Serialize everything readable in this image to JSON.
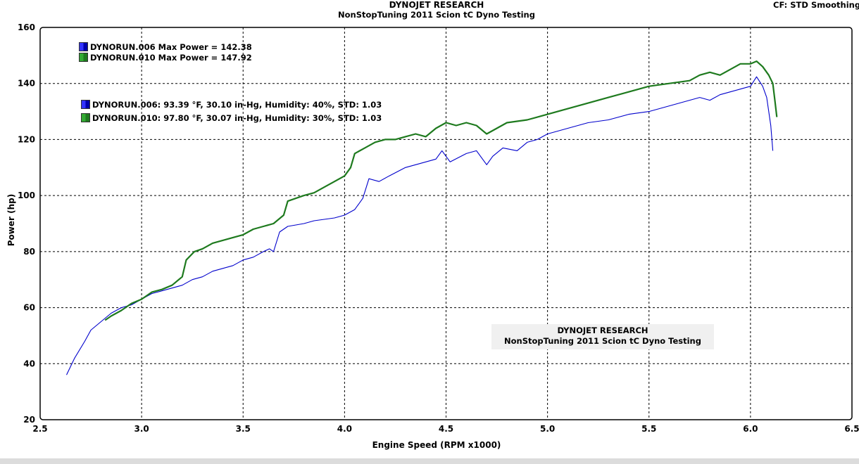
{
  "header": {
    "title": "DYNOJET RESEARCH",
    "subtitle": "NonStopTuning 2011 Scion tC Dyno Testing",
    "cf_label": "CF: STD  Smoothing"
  },
  "note_box": {
    "line1": "DYNOJET RESEARCH",
    "line2": "NonStopTuning 2011 Scion tC Dyno Testing"
  },
  "legend": {
    "max_power": [
      "DYNORUN.006 Max Power = 142.38",
      "DYNORUN.010 Max Power = 147.92"
    ],
    "conditions": [
      "DYNORUN.006: 93.39 °F, 30.10 in-Hg, Humidity: 40%, STD: 1.03",
      "DYNORUN.010: 97.80 °F, 30.07 in-Hg, Humidity: 30%, STD: 1.03"
    ]
  },
  "colors": {
    "run006": "#0000cc",
    "run010": "#1e7a1e",
    "grid": "#000000"
  },
  "chart_data": {
    "type": "line",
    "title": "DYNOJET RESEARCH",
    "subtitle": "NonStopTuning 2011 Scion tC Dyno Testing",
    "xlabel": "Engine Speed (RPM x1000)",
    "ylabel": "Power (hp)",
    "xlim": [
      2.5,
      6.5
    ],
    "ylim": [
      20,
      160
    ],
    "xticks": [
      "2.5",
      "3.0",
      "3.5",
      "4.0",
      "4.5",
      "5.0",
      "5.5",
      "6.0",
      "6.5"
    ],
    "yticks": [
      "20",
      "40",
      "60",
      "80",
      "100",
      "120",
      "140",
      "160"
    ],
    "grid": true,
    "legend_position": "top-left",
    "series": [
      {
        "name": "DYNORUN.006",
        "color": "#0000cc",
        "points": [
          [
            2.63,
            36
          ],
          [
            2.67,
            42
          ],
          [
            2.72,
            48
          ],
          [
            2.75,
            52
          ],
          [
            2.8,
            55
          ],
          [
            2.85,
            58
          ],
          [
            2.9,
            60
          ],
          [
            2.95,
            61
          ],
          [
            3.0,
            63
          ],
          [
            3.05,
            65
          ],
          [
            3.1,
            66
          ],
          [
            3.15,
            67
          ],
          [
            3.2,
            68
          ],
          [
            3.25,
            70
          ],
          [
            3.3,
            71
          ],
          [
            3.35,
            73
          ],
          [
            3.4,
            74
          ],
          [
            3.45,
            75
          ],
          [
            3.5,
            77
          ],
          [
            3.55,
            78
          ],
          [
            3.6,
            80
          ],
          [
            3.63,
            81
          ],
          [
            3.65,
            80
          ],
          [
            3.68,
            87
          ],
          [
            3.72,
            89
          ],
          [
            3.8,
            90
          ],
          [
            3.85,
            91
          ],
          [
            3.95,
            92
          ],
          [
            4.0,
            93
          ],
          [
            4.05,
            95
          ],
          [
            4.09,
            99
          ],
          [
            4.12,
            106
          ],
          [
            4.17,
            105
          ],
          [
            4.22,
            107
          ],
          [
            4.3,
            110
          ],
          [
            4.35,
            111
          ],
          [
            4.4,
            112
          ],
          [
            4.45,
            113
          ],
          [
            4.48,
            116
          ],
          [
            4.52,
            112
          ],
          [
            4.6,
            115
          ],
          [
            4.65,
            116
          ],
          [
            4.7,
            111
          ],
          [
            4.73,
            114
          ],
          [
            4.78,
            117
          ],
          [
            4.85,
            116
          ],
          [
            4.9,
            119
          ],
          [
            4.95,
            120
          ],
          [
            5.0,
            122
          ],
          [
            5.05,
            123
          ],
          [
            5.1,
            124
          ],
          [
            5.2,
            126
          ],
          [
            5.3,
            127
          ],
          [
            5.4,
            129
          ],
          [
            5.5,
            130
          ],
          [
            5.6,
            132
          ],
          [
            5.7,
            134
          ],
          [
            5.75,
            135
          ],
          [
            5.8,
            134
          ],
          [
            5.85,
            136
          ],
          [
            5.9,
            137
          ],
          [
            5.95,
            138
          ],
          [
            6.0,
            139
          ],
          [
            6.03,
            142.38
          ],
          [
            6.06,
            139
          ],
          [
            6.08,
            135
          ],
          [
            6.1,
            125
          ],
          [
            6.11,
            116
          ]
        ]
      },
      {
        "name": "DYNORUN.010",
        "color": "#1e7a1e",
        "points": [
          [
            2.82,
            55.5
          ],
          [
            2.85,
            57
          ],
          [
            2.9,
            59
          ],
          [
            2.95,
            61.5
          ],
          [
            3.0,
            63
          ],
          [
            3.05,
            65.5
          ],
          [
            3.1,
            66.5
          ],
          [
            3.15,
            68
          ],
          [
            3.2,
            71
          ],
          [
            3.22,
            77
          ],
          [
            3.26,
            80
          ],
          [
            3.3,
            81
          ],
          [
            3.35,
            83
          ],
          [
            3.4,
            84
          ],
          [
            3.45,
            85
          ],
          [
            3.5,
            86
          ],
          [
            3.55,
            88
          ],
          [
            3.6,
            89
          ],
          [
            3.65,
            90
          ],
          [
            3.7,
            93
          ],
          [
            3.72,
            98
          ],
          [
            3.76,
            99
          ],
          [
            3.8,
            100
          ],
          [
            3.85,
            101
          ],
          [
            3.9,
            103
          ],
          [
            3.95,
            105
          ],
          [
            4.0,
            107
          ],
          [
            4.03,
            110
          ],
          [
            4.05,
            115
          ],
          [
            4.1,
            117
          ],
          [
            4.15,
            119
          ],
          [
            4.2,
            120
          ],
          [
            4.25,
            120
          ],
          [
            4.3,
            121
          ],
          [
            4.35,
            122
          ],
          [
            4.4,
            121
          ],
          [
            4.45,
            124
          ],
          [
            4.5,
            126
          ],
          [
            4.55,
            125
          ],
          [
            4.6,
            126
          ],
          [
            4.65,
            125
          ],
          [
            4.7,
            122
          ],
          [
            4.75,
            124
          ],
          [
            4.8,
            126
          ],
          [
            4.9,
            127
          ],
          [
            5.0,
            129
          ],
          [
            5.1,
            131
          ],
          [
            5.2,
            133
          ],
          [
            5.3,
            135
          ],
          [
            5.4,
            137
          ],
          [
            5.5,
            139
          ],
          [
            5.6,
            140
          ],
          [
            5.7,
            141
          ],
          [
            5.75,
            143
          ],
          [
            5.8,
            144
          ],
          [
            5.85,
            143
          ],
          [
            5.9,
            145
          ],
          [
            5.95,
            147
          ],
          [
            6.0,
            147
          ],
          [
            6.03,
            147.92
          ],
          [
            6.06,
            146
          ],
          [
            6.09,
            143
          ],
          [
            6.11,
            140
          ],
          [
            6.12,
            134
          ],
          [
            6.13,
            128
          ]
        ]
      }
    ]
  }
}
